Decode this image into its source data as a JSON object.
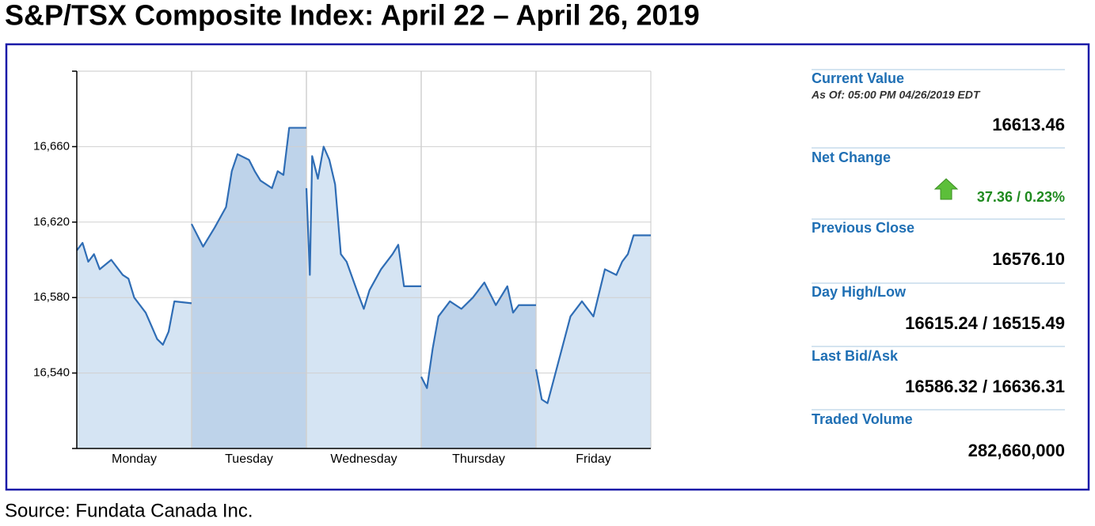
{
  "chart_data": {
    "type": "area",
    "title": "S&P/TSX Composite Index: April 22 – April 26, 2019",
    "categories": [
      "Monday",
      "Tuesday",
      "Wednesday",
      "Thursday",
      "Friday"
    ],
    "x": [
      0,
      0.05,
      0.1,
      0.15,
      0.2,
      0.3,
      0.4,
      0.45,
      0.5,
      0.55,
      0.6,
      0.65,
      0.7,
      0.75,
      0.8,
      0.85,
      1.0,
      null,
      1.0,
      1.1,
      1.2,
      1.3,
      1.35,
      1.4,
      1.5,
      1.55,
      1.6,
      1.7,
      1.75,
      1.8,
      1.85,
      2.0,
      null,
      2.0,
      2.03,
      2.05,
      2.1,
      2.15,
      2.2,
      2.25,
      2.3,
      2.35,
      2.45,
      2.5,
      2.55,
      2.65,
      2.75,
      2.8,
      2.85,
      3.0,
      null,
      3.0,
      3.05,
      3.1,
      3.15,
      3.25,
      3.35,
      3.45,
      3.55,
      3.65,
      3.75,
      3.8,
      3.85,
      4.0,
      null,
      4.0,
      4.05,
      4.1,
      4.2,
      4.3,
      4.4,
      4.5,
      4.6,
      4.7,
      4.75,
      4.8,
      4.85,
      5.0
    ],
    "values": [
      16605,
      16609,
      16599,
      16603,
      16595,
      16600,
      16592,
      16590,
      16580,
      16576,
      16572,
      16565,
      16558,
      16555,
      16562,
      16578,
      16577,
      null,
      16619,
      16607,
      16617,
      16628,
      16647,
      16656,
      16653,
      16647,
      16642,
      16638,
      16647,
      16645,
      16670,
      16670,
      null,
      16638,
      16592,
      16655,
      16643,
      16660,
      16653,
      16640,
      16603,
      16599,
      16582,
      16574,
      16584,
      16595,
      16603,
      16608,
      16586,
      16586,
      null,
      16538,
      16532,
      16553,
      16570,
      16578,
      16574,
      16580,
      16588,
      16576,
      16586,
      16572,
      16576,
      16576,
      null,
      16542,
      16526,
      16524,
      16547,
      16570,
      16578,
      16570,
      16595,
      16592,
      16599,
      16603,
      16613,
      16613
    ],
    "color": "#2f6db5",
    "xlim": [
      0,
      5
    ],
    "ylim": [
      16500,
      16700
    ],
    "yticks": [
      {
        "value": 16540,
        "label": "16,540"
      },
      {
        "value": 16580,
        "label": "16,580"
      },
      {
        "value": 16620,
        "label": "16,620"
      },
      {
        "value": 16660,
        "label": "16,660"
      }
    ],
    "grid": true
  },
  "panel": [
    {
      "label": "Current Value",
      "note": "As Of: 05:00 PM 04/26/2019 EDT",
      "value": "16613.46",
      "color": "#000000"
    },
    {
      "label": "Net Change",
      "value": "37.36 / 0.23%",
      "color": "#1f8a1f"
    },
    {
      "label": "Previous Close",
      "value": "16576.10",
      "color": "#000000"
    },
    {
      "label": "Day High/Low",
      "value": "16615.24 / 16515.49",
      "color": "#000000"
    },
    {
      "label": "Last Bid/Ask",
      "value": "16586.32 / 16636.31",
      "color": "#000000"
    },
    {
      "label": "Traded Volume",
      "value": "282,660,000",
      "color": "#000000"
    }
  ],
  "source": "Source: Fundata Canada Inc."
}
